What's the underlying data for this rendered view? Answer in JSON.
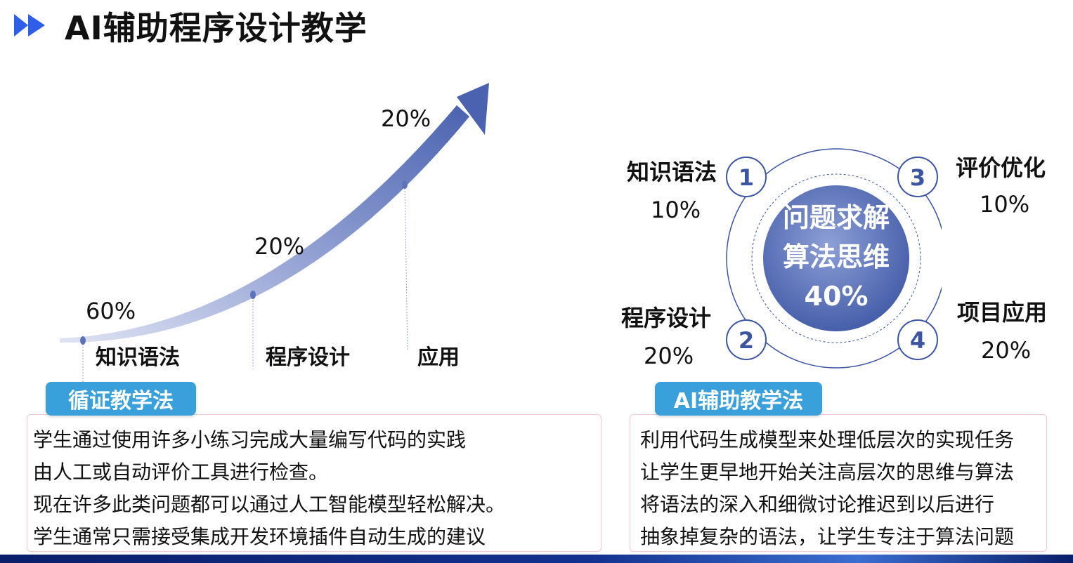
{
  "header": {
    "title": "AI辅助程序设计教学"
  },
  "left_diagram": {
    "stages": [
      {
        "label": "知识语法",
        "percent": "60%"
      },
      {
        "label": "程序设计",
        "percent": "20%"
      },
      {
        "label": "应用",
        "percent": "20%"
      }
    ],
    "tag": "循证教学法",
    "lines": [
      "学生通过使用许多小练习完成大量编写代码的实践",
      "由人工或自动评价工具进行检查。",
      "现在许多此类问题都可以通过人工智能模型轻松解决。",
      "学生通常只需接受集成开发环境插件自动生成的建议"
    ]
  },
  "right_diagram": {
    "center_lines": [
      "问题求解",
      "算法思维",
      "40%"
    ],
    "items": [
      {
        "number": "1",
        "label": "知识语法",
        "percent": "10%"
      },
      {
        "number": "2",
        "label": "程序设计",
        "percent": "20%"
      },
      {
        "number": "3",
        "label": "评价优化",
        "percent": "10%"
      },
      {
        "number": "4",
        "label": "项目应用",
        "percent": "20%"
      }
    ],
    "tag": "AI辅助教学法",
    "lines": [
      "利用代码生成模型来处理低层次的实现任务",
      "让学生更早地开始关注高层次的思维与算法",
      "将语法的深入和细微讨论推迟到以后进行",
      "抽象掉复杂的语法，让学生专注于算法问题"
    ]
  },
  "colors": {
    "accent_blue": "#3aa0dc",
    "ring_blue": "#3b55a3",
    "arrow_blue": "#4a62b0",
    "title_arrow": "#2f5ee8"
  }
}
